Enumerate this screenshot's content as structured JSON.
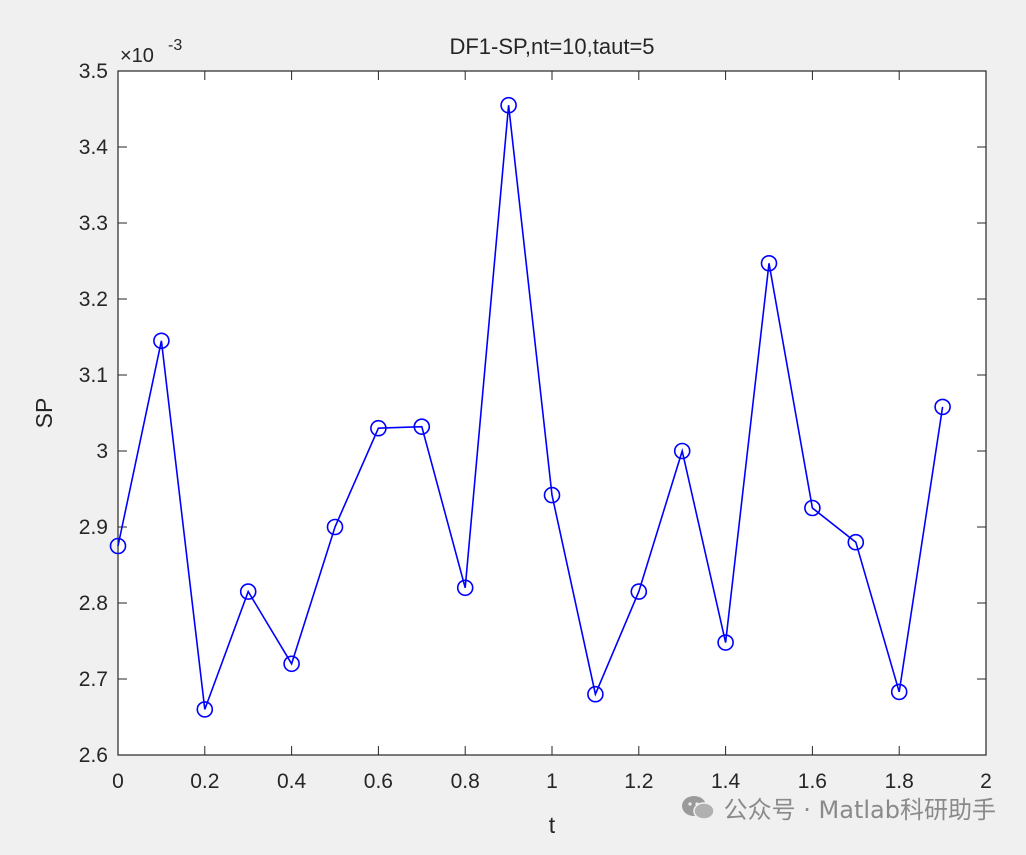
{
  "chart_data": {
    "type": "line",
    "title": "DF1-SP,nt=10,taut=5",
    "xlabel": "t",
    "ylabel": "SP",
    "y_exponent_label": "×10",
    "y_exponent_power": "-3",
    "xlim": [
      0,
      2
    ],
    "ylim": [
      2.6,
      3.5
    ],
    "x_ticks": [
      "0",
      "0.2",
      "0.4",
      "0.6",
      "0.8",
      "1",
      "1.2",
      "1.4",
      "1.6",
      "1.8",
      "2"
    ],
    "y_ticks": [
      "2.6",
      "2.7",
      "2.8",
      "2.9",
      "3",
      "3.1",
      "3.2",
      "3.3",
      "3.4",
      "3.5"
    ],
    "x_tick_values": [
      0,
      0.2,
      0.4,
      0.6,
      0.8,
      1.0,
      1.2,
      1.4,
      1.6,
      1.8,
      2.0
    ],
    "y_tick_values": [
      2.6,
      2.7,
      2.8,
      2.9,
      3.0,
      3.1,
      3.2,
      3.3,
      3.4,
      3.5
    ],
    "grid": false,
    "series": [
      {
        "color": "#0000ff",
        "marker": "circle",
        "x": [
          0,
          0.1,
          0.2,
          0.3,
          0.4,
          0.5,
          0.6,
          0.7,
          0.8,
          0.9,
          1.0,
          1.1,
          1.2,
          1.3,
          1.4,
          1.5,
          1.6,
          1.7,
          1.8,
          1.9
        ],
        "y": [
          2.875,
          3.145,
          2.66,
          2.815,
          2.72,
          2.9,
          3.03,
          3.032,
          2.82,
          3.455,
          2.942,
          2.68,
          2.815,
          3.0,
          2.748,
          3.247,
          2.925,
          2.88,
          2.683,
          3.058
        ]
      }
    ]
  },
  "watermark": {
    "text": "公众号 · Matlab科研助手",
    "icon": "wechat-icon"
  }
}
